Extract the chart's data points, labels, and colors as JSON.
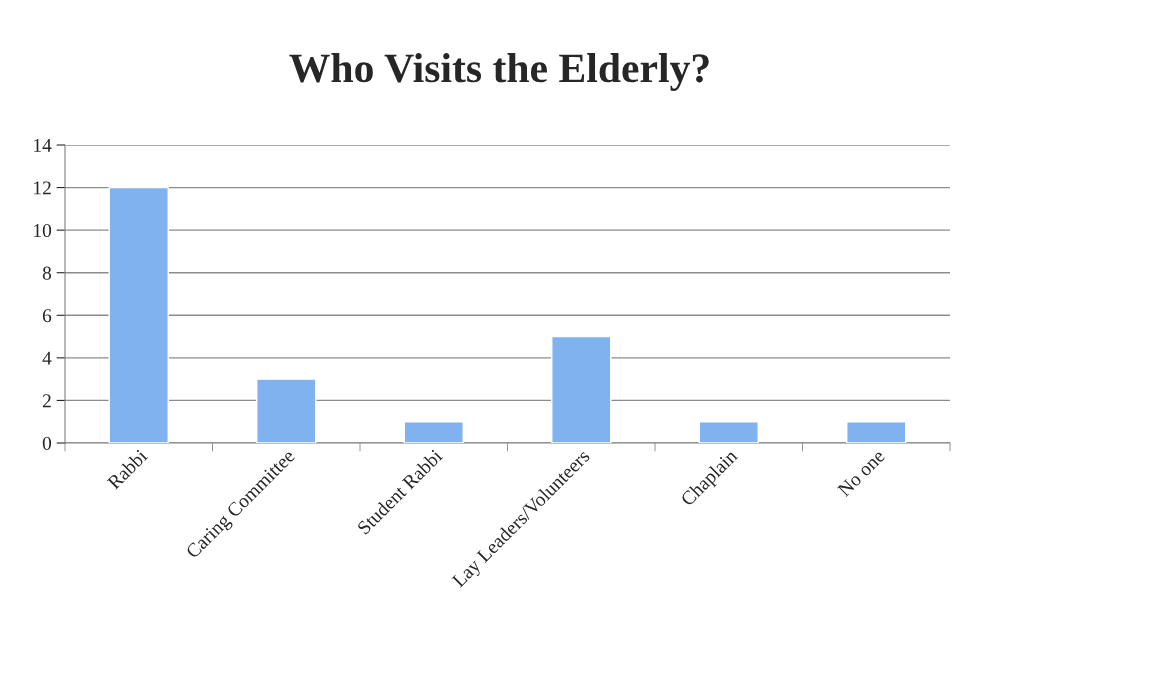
{
  "chart_data": {
    "type": "bar",
    "title": "Who Visits the Elderly?",
    "categories": [
      "Rabbi",
      "Caring Committee",
      "Student Rabbi",
      "Lay Leaders/Volunteers",
      "Chaplain",
      "No one"
    ],
    "values": [
      12,
      3,
      1,
      5,
      1,
      1
    ],
    "color": "#7fb2ef",
    "ylim": [
      0,
      14
    ],
    "yticks": [
      0,
      2,
      4,
      6,
      8,
      10,
      12,
      14
    ],
    "grid": "y",
    "legend": false
  }
}
